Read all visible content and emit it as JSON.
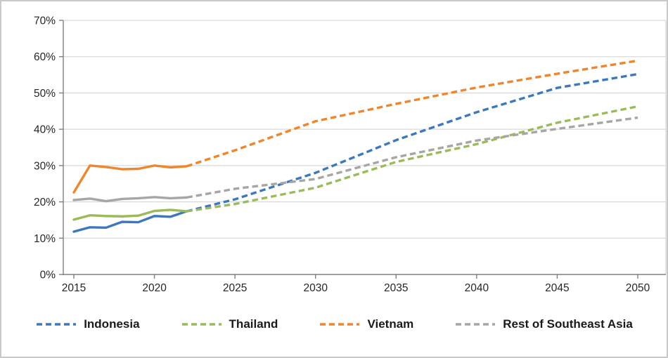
{
  "chart_data": {
    "type": "line",
    "title": "",
    "xlabel": "",
    "ylabel": "",
    "grid": true,
    "legend_position": "bottom",
    "x_axis": {
      "min": 2015,
      "max": 2050,
      "ticks": [
        "2015",
        "2020",
        "2025",
        "2030",
        "2035",
        "2040",
        "2045",
        "2050"
      ]
    },
    "y_axis": {
      "min": 0,
      "max": 70,
      "ticks": [
        "0%",
        "10%",
        "20%",
        "30%",
        "40%",
        "50%",
        "60%",
        "70%"
      ]
    },
    "line_style_note": "solid = historical 2015-2022, dashed = projection 2022-2050",
    "series": [
      {
        "name": "Indonesia",
        "color": "#3B78BE",
        "historical": {
          "years": [
            2015,
            2016,
            2017,
            2018,
            2019,
            2020,
            2021,
            2022
          ],
          "values": [
            11.8,
            13.0,
            12.9,
            14.5,
            14.4,
            16.1,
            15.9,
            17.4
          ]
        },
        "projection": {
          "years": [
            2022,
            2025,
            2030,
            2035,
            2040,
            2045,
            2050
          ],
          "values": [
            17.4,
            20.7,
            28.0,
            37.0,
            44.7,
            51.4,
            55.2
          ]
        }
      },
      {
        "name": "Thailand",
        "color": "#9BBB59",
        "historical": {
          "years": [
            2015,
            2016,
            2017,
            2018,
            2019,
            2020,
            2021,
            2022
          ],
          "values": [
            15.1,
            16.3,
            16.1,
            16.0,
            16.2,
            17.5,
            17.8,
            17.4
          ]
        },
        "projection": {
          "years": [
            2022,
            2025,
            2030,
            2035,
            2040,
            2045,
            2050
          ],
          "values": [
            17.4,
            19.4,
            23.9,
            31.0,
            35.9,
            41.8,
            46.3
          ]
        }
      },
      {
        "name": "Vietnam",
        "color": "#F0862B",
        "historical": {
          "years": [
            2015,
            2016,
            2017,
            2018,
            2019,
            2020,
            2021,
            2022
          ],
          "values": [
            22.6,
            30.0,
            29.6,
            29.0,
            29.1,
            30.0,
            29.5,
            29.8
          ]
        },
        "projection": {
          "years": [
            2022,
            2025,
            2030,
            2035,
            2040,
            2045,
            2050
          ],
          "values": [
            29.8,
            34.2,
            42.2,
            47.0,
            51.5,
            55.3,
            58.9
          ]
        }
      },
      {
        "name": "Rest of Southeast Asia",
        "color": "#A6A6A6",
        "historical": {
          "years": [
            2015,
            2016,
            2017,
            2018,
            2019,
            2020,
            2021,
            2022
          ],
          "values": [
            20.5,
            20.9,
            20.2,
            20.8,
            21.0,
            21.3,
            21.0,
            21.2
          ]
        },
        "projection": {
          "years": [
            2022,
            2025,
            2030,
            2035,
            2040,
            2045,
            2050
          ],
          "values": [
            21.2,
            23.6,
            26.3,
            32.3,
            36.9,
            40.1,
            43.2
          ]
        }
      }
    ],
    "colors": {
      "gridline": "#d9d9d9",
      "axis": "#808080",
      "tick_label": "#262626",
      "frame_border": "#c9c9c9"
    }
  }
}
